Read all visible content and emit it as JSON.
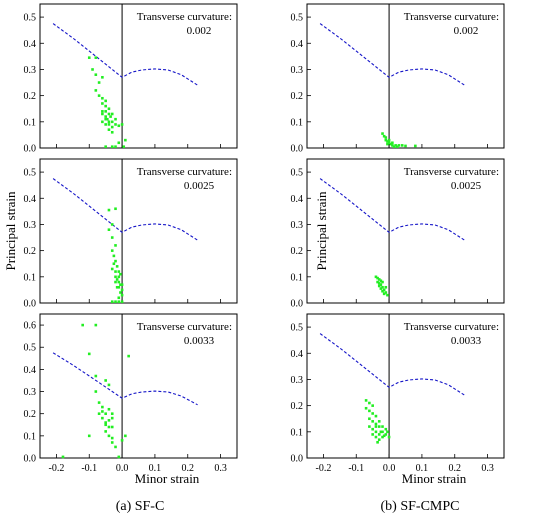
{
  "figure": {
    "ylabel": "Principal strain",
    "xlabel": "Minor strain",
    "col_captions": [
      "(a) SF-C",
      "(b) SF-CMPC"
    ],
    "curvature_label": "Transverse curvature:"
  },
  "chart_data": [
    {
      "type": "scatter",
      "col": 0,
      "row": 0,
      "annotation": "0.002",
      "xlim": [
        -0.25,
        0.35
      ],
      "ylim": [
        0,
        0.55
      ],
      "xticks": [
        -0.2,
        -0.1,
        0.0,
        0.1,
        0.2,
        0.3
      ],
      "yticks": [
        0,
        0.1,
        0.2,
        0.3,
        0.4,
        0.5
      ],
      "show_xtick_labels": false,
      "flc": {
        "left": [
          [
            -0.21,
            0.475
          ],
          [
            -0.15,
            0.42
          ],
          [
            -0.1,
            0.37
          ],
          [
            -0.05,
            0.32
          ],
          [
            0,
            0.27
          ]
        ],
        "right": [
          [
            0,
            0.27
          ],
          [
            0.03,
            0.29
          ],
          [
            0.06,
            0.298
          ],
          [
            0.1,
            0.302
          ],
          [
            0.14,
            0.298
          ],
          [
            0.18,
            0.28
          ],
          [
            0.23,
            0.24
          ]
        ]
      },
      "points": [
        [
          -0.1,
          0.345
        ],
        [
          -0.08,
          0.345
        ],
        [
          -0.09,
          0.3
        ],
        [
          -0.08,
          0.28
        ],
        [
          -0.06,
          0.27
        ],
        [
          -0.07,
          0.25
        ],
        [
          -0.08,
          0.22
        ],
        [
          -0.07,
          0.2
        ],
        [
          -0.06,
          0.19
        ],
        [
          -0.05,
          0.18
        ],
        [
          -0.06,
          0.17
        ],
        [
          -0.05,
          0.16
        ],
        [
          -0.04,
          0.15
        ],
        [
          -0.05,
          0.14
        ],
        [
          -0.04,
          0.13
        ],
        [
          -0.035,
          0.12
        ],
        [
          -0.045,
          0.11
        ],
        [
          -0.03,
          0.1
        ],
        [
          -0.04,
          0.09
        ],
        [
          -0.03,
          0.08
        ],
        [
          -0.02,
          0.09
        ],
        [
          -0.01,
          0.085
        ],
        [
          0,
          0.09
        ],
        [
          -0.02,
          0.11
        ],
        [
          -0.04,
          0.1
        ],
        [
          -0.05,
          0.12
        ],
        [
          -0.06,
          0.14
        ],
        [
          -0.06,
          0.13
        ],
        [
          -0.03,
          0.13
        ],
        [
          -0.05,
          0.11
        ],
        [
          -0.04,
          0.07
        ],
        [
          -0.03,
          0.06
        ],
        [
          -0.05,
          0.005
        ],
        [
          -0.03,
          0.005
        ],
        [
          -0.02,
          0.005
        ],
        [
          0.005,
          0.005
        ],
        [
          0.01,
          0.03
        ],
        [
          -0.01,
          0.02
        ],
        [
          -0.05,
          0.09
        ],
        [
          -0.06,
          0.1
        ]
      ]
    },
    {
      "type": "scatter",
      "col": 0,
      "row": 1,
      "annotation": "0.0025",
      "xlim": [
        -0.25,
        0.35
      ],
      "ylim": [
        0,
        0.55
      ],
      "xticks": [
        -0.2,
        -0.1,
        0.0,
        0.1,
        0.2,
        0.3
      ],
      "yticks": [
        0,
        0.1,
        0.2,
        0.3,
        0.4,
        0.5
      ],
      "show_xtick_labels": false,
      "flc": {
        "left": [
          [
            -0.21,
            0.475
          ],
          [
            -0.15,
            0.42
          ],
          [
            -0.1,
            0.37
          ],
          [
            -0.05,
            0.32
          ],
          [
            0,
            0.27
          ]
        ],
        "right": [
          [
            0,
            0.27
          ],
          [
            0.03,
            0.29
          ],
          [
            0.06,
            0.298
          ],
          [
            0.1,
            0.302
          ],
          [
            0.14,
            0.298
          ],
          [
            0.18,
            0.28
          ],
          [
            0.23,
            0.24
          ]
        ]
      },
      "points": [
        [
          -0.04,
          0.355
        ],
        [
          -0.02,
          0.36
        ],
        [
          -0.03,
          0.3
        ],
        [
          -0.04,
          0.28
        ],
        [
          -0.03,
          0.25
        ],
        [
          -0.02,
          0.22
        ],
        [
          -0.03,
          0.2
        ],
        [
          -0.025,
          0.18
        ],
        [
          -0.02,
          0.16
        ],
        [
          -0.015,
          0.14
        ],
        [
          -0.02,
          0.12
        ],
        [
          -0.01,
          0.1
        ],
        [
          -0.015,
          0.09
        ],
        [
          -0.01,
          0.08
        ],
        [
          -0.005,
          0.07
        ],
        [
          -0.01,
          0.06
        ],
        [
          0,
          0.05
        ],
        [
          -0.005,
          0.04
        ],
        [
          0,
          0.03
        ],
        [
          -0.01,
          0.02
        ],
        [
          -0.03,
          0.005
        ],
        [
          -0.02,
          0.005
        ],
        [
          -0.01,
          0.005
        ],
        [
          0,
          0.005
        ],
        [
          -0.02,
          0.1
        ],
        [
          -0.03,
          0.13
        ],
        [
          -0.025,
          0.15
        ],
        [
          -0.01,
          0.12
        ],
        [
          -0.005,
          0.11
        ],
        [
          0,
          0.07
        ],
        [
          -0.02,
          0.08
        ],
        [
          -0.015,
          0.06
        ]
      ]
    },
    {
      "type": "scatter",
      "col": 0,
      "row": 2,
      "annotation": "0.0033",
      "xlim": [
        -0.25,
        0.35
      ],
      "ylim": [
        0,
        0.65
      ],
      "xticks": [
        -0.2,
        -0.1,
        0.0,
        0.1,
        0.2,
        0.3
      ],
      "yticks": [
        0,
        0.1,
        0.2,
        0.3,
        0.4,
        0.5,
        0.6
      ],
      "show_xtick_labels": true,
      "flc": {
        "left": [
          [
            -0.21,
            0.475
          ],
          [
            -0.15,
            0.42
          ],
          [
            -0.1,
            0.37
          ],
          [
            -0.05,
            0.32
          ],
          [
            0,
            0.27
          ]
        ],
        "right": [
          [
            0,
            0.27
          ],
          [
            0.03,
            0.29
          ],
          [
            0.06,
            0.298
          ],
          [
            0.1,
            0.302
          ],
          [
            0.14,
            0.298
          ],
          [
            0.18,
            0.28
          ],
          [
            0.23,
            0.24
          ]
        ]
      },
      "points": [
        [
          -0.12,
          0.6
        ],
        [
          -0.08,
          0.6
        ],
        [
          -0.1,
          0.47
        ],
        [
          0.02,
          0.46
        ],
        [
          -0.08,
          0.37
        ],
        [
          -0.05,
          0.35
        ],
        [
          -0.04,
          0.33
        ],
        [
          -0.08,
          0.3
        ],
        [
          -0.07,
          0.25
        ],
        [
          -0.06,
          0.23
        ],
        [
          -0.05,
          0.2
        ],
        [
          -0.06,
          0.18
        ],
        [
          -0.05,
          0.16
        ],
        [
          -0.04,
          0.14
        ],
        [
          -0.05,
          0.12
        ],
        [
          -0.04,
          0.1
        ],
        [
          -0.03,
          0.09
        ],
        [
          -0.04,
          0.22
        ],
        [
          -0.03,
          0.2
        ],
        [
          -0.06,
          0.21
        ],
        [
          -0.07,
          0.2
        ],
        [
          -0.03,
          0.18
        ],
        [
          -0.05,
          0.15
        ],
        [
          -0.04,
          0.17
        ],
        [
          -0.03,
          0.14
        ],
        [
          -0.03,
          0.07
        ],
        [
          -0.02,
          0.05
        ],
        [
          -0.01,
          0.005
        ],
        [
          0,
          0.08
        ],
        [
          0.01,
          0.1
        ],
        [
          -0.1,
          0.1
        ],
        [
          -0.18,
          0.005
        ]
      ]
    },
    {
      "type": "scatter",
      "col": 1,
      "row": 0,
      "annotation": "0.002",
      "xlim": [
        -0.25,
        0.35
      ],
      "ylim": [
        0,
        0.55
      ],
      "xticks": [
        -0.2,
        -0.1,
        0.0,
        0.1,
        0.2,
        0.3
      ],
      "yticks": [
        0,
        0.1,
        0.2,
        0.3,
        0.4,
        0.5
      ],
      "show_xtick_labels": false,
      "flc": {
        "left": [
          [
            -0.21,
            0.475
          ],
          [
            -0.15,
            0.42
          ],
          [
            -0.1,
            0.37
          ],
          [
            -0.05,
            0.32
          ],
          [
            0,
            0.27
          ]
        ],
        "right": [
          [
            0,
            0.27
          ],
          [
            0.03,
            0.29
          ],
          [
            0.06,
            0.298
          ],
          [
            0.1,
            0.302
          ],
          [
            0.14,
            0.298
          ],
          [
            0.18,
            0.28
          ],
          [
            0.23,
            0.24
          ]
        ]
      },
      "points": [
        [
          -0.02,
          0.055
        ],
        [
          -0.015,
          0.045
        ],
        [
          -0.01,
          0.04
        ],
        [
          -0.01,
          0.03
        ],
        [
          -0.005,
          0.025
        ],
        [
          0,
          0.02
        ],
        [
          0.005,
          0.015
        ],
        [
          0.01,
          0.01
        ],
        [
          0.02,
          0.01
        ],
        [
          0.03,
          0.01
        ],
        [
          0.04,
          0.01
        ],
        [
          0.05,
          0.008
        ],
        [
          0.08,
          0.008
        ],
        [
          0,
          0.03
        ],
        [
          0.01,
          0.02
        ],
        [
          -0.005,
          0.015
        ],
        [
          0.015,
          0.005
        ],
        [
          0.025,
          0.005
        ]
      ]
    },
    {
      "type": "scatter",
      "col": 1,
      "row": 1,
      "annotation": "0.0025",
      "xlim": [
        -0.25,
        0.35
      ],
      "ylim": [
        0,
        0.55
      ],
      "xticks": [
        -0.2,
        -0.1,
        0.0,
        0.1,
        0.2,
        0.3
      ],
      "yticks": [
        0,
        0.1,
        0.2,
        0.3,
        0.4,
        0.5
      ],
      "show_xtick_labels": false,
      "flc": {
        "left": [
          [
            -0.21,
            0.475
          ],
          [
            -0.15,
            0.42
          ],
          [
            -0.1,
            0.37
          ],
          [
            -0.05,
            0.32
          ],
          [
            0,
            0.27
          ]
        ],
        "right": [
          [
            0,
            0.27
          ],
          [
            0.03,
            0.29
          ],
          [
            0.06,
            0.298
          ],
          [
            0.1,
            0.302
          ],
          [
            0.14,
            0.298
          ],
          [
            0.18,
            0.28
          ],
          [
            0.23,
            0.24
          ]
        ]
      },
      "points": [
        [
          -0.04,
          0.1
        ],
        [
          -0.035,
          0.095
        ],
        [
          -0.03,
          0.09
        ],
        [
          -0.035,
          0.08
        ],
        [
          -0.03,
          0.075
        ],
        [
          -0.025,
          0.07
        ],
        [
          -0.03,
          0.065
        ],
        [
          -0.02,
          0.06
        ],
        [
          -0.025,
          0.055
        ],
        [
          -0.015,
          0.05
        ],
        [
          -0.02,
          0.045
        ],
        [
          -0.01,
          0.04
        ],
        [
          -0.015,
          0.035
        ],
        [
          -0.005,
          0.03
        ],
        [
          -0.01,
          0.06
        ],
        [
          -0.02,
          0.08
        ],
        [
          -0.025,
          0.085
        ]
      ]
    },
    {
      "type": "scatter",
      "col": 1,
      "row": 2,
      "annotation": "0.0033",
      "xlim": [
        -0.25,
        0.35
      ],
      "ylim": [
        0,
        0.55
      ],
      "xticks": [
        -0.2,
        -0.1,
        0.0,
        0.1,
        0.2,
        0.3
      ],
      "yticks": [
        0,
        0.1,
        0.2,
        0.3,
        0.4,
        0.5
      ],
      "show_xtick_labels": true,
      "flc": {
        "left": [
          [
            -0.21,
            0.475
          ],
          [
            -0.15,
            0.42
          ],
          [
            -0.1,
            0.37
          ],
          [
            -0.05,
            0.32
          ],
          [
            0,
            0.27
          ]
        ],
        "right": [
          [
            0,
            0.27
          ],
          [
            0.03,
            0.29
          ],
          [
            0.06,
            0.298
          ],
          [
            0.1,
            0.302
          ],
          [
            0.14,
            0.298
          ],
          [
            0.18,
            0.28
          ],
          [
            0.23,
            0.24
          ]
        ]
      },
      "points": [
        [
          -0.07,
          0.22
        ],
        [
          -0.06,
          0.21
        ],
        [
          -0.05,
          0.2
        ],
        [
          -0.07,
          0.19
        ],
        [
          -0.06,
          0.18
        ],
        [
          -0.05,
          0.17
        ],
        [
          -0.04,
          0.16
        ],
        [
          -0.06,
          0.15
        ],
        [
          -0.05,
          0.14
        ],
        [
          -0.04,
          0.13
        ],
        [
          -0.03,
          0.12
        ],
        [
          -0.05,
          0.11
        ],
        [
          -0.04,
          0.1
        ],
        [
          -0.03,
          0.09
        ],
        [
          -0.02,
          0.08
        ],
        [
          -0.03,
          0.07
        ],
        [
          -0.01,
          0.09
        ],
        [
          0,
          0.08
        ],
        [
          -0.02,
          0.1
        ],
        [
          -0.01,
          0.11
        ],
        [
          -0.04,
          0.12
        ],
        [
          -0.03,
          0.14
        ],
        [
          -0.02,
          0.12
        ],
        [
          -0.05,
          0.09
        ],
        [
          -0.04,
          0.08
        ],
        [
          -0.06,
          0.12
        ],
        [
          -0.035,
          0.06
        ],
        [
          -0.025,
          0.1
        ],
        [
          -0.015,
          0.085
        ],
        [
          -0.005,
          0.1
        ]
      ]
    }
  ],
  "colors": {
    "points": "#22ee22",
    "flc": "#1515c8",
    "axis": "#000000"
  }
}
